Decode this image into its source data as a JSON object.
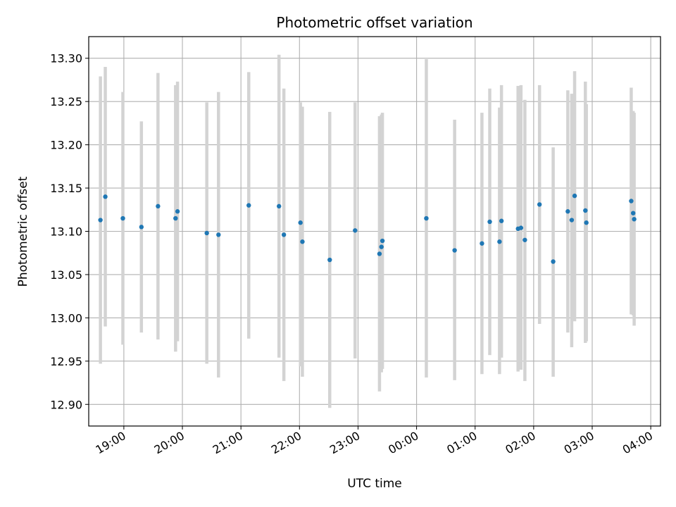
{
  "chart_data": {
    "type": "scatter",
    "title": "Photometric offset variation",
    "xlabel": "UTC time",
    "ylabel": "Photometric offset",
    "x_unit": "hours",
    "xlim": [
      "18:24",
      "04:10"
    ],
    "ylim": [
      12.875,
      13.325
    ],
    "x_ticks": [
      "19:00",
      "20:00",
      "21:00",
      "22:00",
      "23:00",
      "00:00",
      "01:00",
      "02:00",
      "03:00",
      "04:00"
    ],
    "y_ticks": [
      "12.90",
      "12.95",
      "13.00",
      "13.05",
      "13.10",
      "13.15",
      "13.20",
      "13.25",
      "13.30"
    ],
    "grid": true,
    "point_color": "#1f77b4",
    "errorbar_color": "#d3d3d3",
    "series": [
      {
        "points": [
          {
            "x": "18:36",
            "y": 13.113,
            "ylow": 12.947,
            "yhigh": 13.279
          },
          {
            "x": "18:41",
            "y": 13.14,
            "ylow": 12.99,
            "yhigh": 13.29
          },
          {
            "x": "18:59",
            "y": 13.115,
            "ylow": 12.969,
            "yhigh": 13.261
          },
          {
            "x": "19:18",
            "y": 13.105,
            "ylow": 12.983,
            "yhigh": 13.227
          },
          {
            "x": "19:35",
            "y": 13.129,
            "ylow": 12.975,
            "yhigh": 13.283
          },
          {
            "x": "19:53",
            "y": 13.115,
            "ylow": 12.961,
            "yhigh": 13.269
          },
          {
            "x": "19:55",
            "y": 13.123,
            "ylow": 12.973,
            "yhigh": 13.273
          },
          {
            "x": "20:25",
            "y": 13.098,
            "ylow": 12.947,
            "yhigh": 13.249
          },
          {
            "x": "20:37",
            "y": 13.096,
            "ylow": 12.931,
            "yhigh": 13.261
          },
          {
            "x": "21:08",
            "y": 13.13,
            "ylow": 12.976,
            "yhigh": 13.284
          },
          {
            "x": "21:39",
            "y": 13.129,
            "ylow": 12.954,
            "yhigh": 13.304
          },
          {
            "x": "21:44",
            "y": 13.096,
            "ylow": 12.927,
            "yhigh": 13.265
          },
          {
            "x": "22:01",
            "y": 13.11,
            "ylow": 12.944,
            "yhigh": 13.249
          },
          {
            "x": "22:03",
            "y": 13.088,
            "ylow": 12.932,
            "yhigh": 13.244
          },
          {
            "x": "22:31",
            "y": 13.067,
            "ylow": 12.896,
            "yhigh": 13.238
          },
          {
            "x": "22:57",
            "y": 13.101,
            "ylow": 12.953,
            "yhigh": 13.249
          },
          {
            "x": "23:22",
            "y": 13.074,
            "ylow": 12.915,
            "yhigh": 13.233
          },
          {
            "x": "23:24",
            "y": 13.082,
            "ylow": 12.937,
            "yhigh": 13.235
          },
          {
            "x": "23:25",
            "y": 13.089,
            "ylow": 12.941,
            "yhigh": 13.237
          },
          {
            "x": "00:10",
            "y": 13.115,
            "ylow": 12.931,
            "yhigh": 13.299
          },
          {
            "x": "00:39",
            "y": 13.078,
            "ylow": 12.928,
            "yhigh": 13.229
          },
          {
            "x": "01:07",
            "y": 13.086,
            "ylow": 12.935,
            "yhigh": 13.237
          },
          {
            "x": "01:15",
            "y": 13.111,
            "ylow": 12.957,
            "yhigh": 13.265
          },
          {
            "x": "01:25",
            "y": 13.088,
            "ylow": 12.935,
            "yhigh": 13.243
          },
          {
            "x": "01:27",
            "y": 13.112,
            "ylow": 12.954,
            "yhigh": 13.269
          },
          {
            "x": "01:44",
            "y": 13.103,
            "ylow": 12.938,
            "yhigh": 13.268
          },
          {
            "x": "01:47",
            "y": 13.104,
            "ylow": 12.94,
            "yhigh": 13.269
          },
          {
            "x": "01:51",
            "y": 13.09,
            "ylow": 12.927,
            "yhigh": 13.252
          },
          {
            "x": "02:06",
            "y": 13.131,
            "ylow": 12.993,
            "yhigh": 13.269
          },
          {
            "x": "02:20",
            "y": 13.065,
            "ylow": 12.932,
            "yhigh": 13.197
          },
          {
            "x": "02:35",
            "y": 13.123,
            "ylow": 12.983,
            "yhigh": 13.263
          },
          {
            "x": "02:39",
            "y": 13.113,
            "ylow": 12.966,
            "yhigh": 13.259
          },
          {
            "x": "02:42",
            "y": 13.141,
            "ylow": 12.996,
            "yhigh": 13.285
          },
          {
            "x": "02:53",
            "y": 13.124,
            "ylow": 12.971,
            "yhigh": 13.273
          },
          {
            "x": "02:54",
            "y": 13.11,
            "ylow": 12.973,
            "yhigh": 13.247
          },
          {
            "x": "03:40",
            "y": 13.135,
            "ylow": 13.004,
            "yhigh": 13.266
          },
          {
            "x": "03:42",
            "y": 13.121,
            "ylow": 13.003,
            "yhigh": 13.239
          },
          {
            "x": "03:43",
            "y": 13.114,
            "ylow": 12.991,
            "yhigh": 13.237
          }
        ]
      }
    ]
  }
}
